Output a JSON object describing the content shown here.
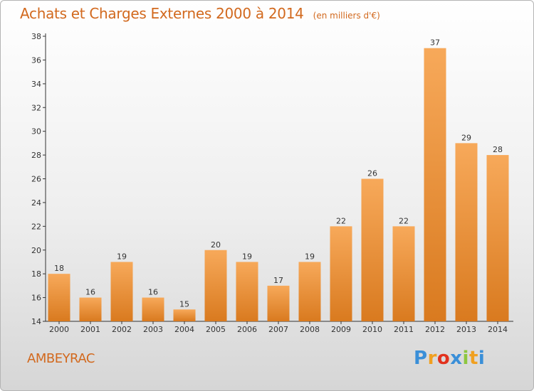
{
  "header": {
    "title": "Achats et Charges Externes 2000 à 2014",
    "subtitle": "(en milliers d'€)"
  },
  "footer": {
    "place": "AMBEYRAC",
    "logo_letters": [
      "P",
      "r",
      "o",
      "x",
      "i",
      "t",
      "i"
    ],
    "logo_colors": [
      "#3a8fd8",
      "#f0a020",
      "#e2321e",
      "#3a8fd8",
      "#8dc63f",
      "#f0a020",
      "#3a8fd8"
    ]
  },
  "colors": {
    "title": "#d2691e",
    "bar_top": "#f7a95a",
    "bar_bottom": "#d97a1f",
    "axis": "#333333"
  },
  "chart_data": {
    "type": "bar",
    "title": "Achats et Charges Externes 2000 à 2014",
    "subtitle": "(en milliers d'€)",
    "xlabel": "",
    "ylabel": "",
    "categories": [
      "2000",
      "2001",
      "2002",
      "2003",
      "2004",
      "2005",
      "2006",
      "2007",
      "2008",
      "2009",
      "2010",
      "2011",
      "2012",
      "2013",
      "2014"
    ],
    "values": [
      18,
      16,
      19,
      16,
      15,
      20,
      19,
      17,
      19,
      22,
      26,
      22,
      37,
      29,
      28
    ],
    "ylim": [
      14,
      38
    ],
    "yticks": [
      14,
      16,
      18,
      20,
      22,
      24,
      26,
      28,
      30,
      32,
      34,
      36,
      38
    ],
    "grid": false,
    "legend": "none"
  }
}
